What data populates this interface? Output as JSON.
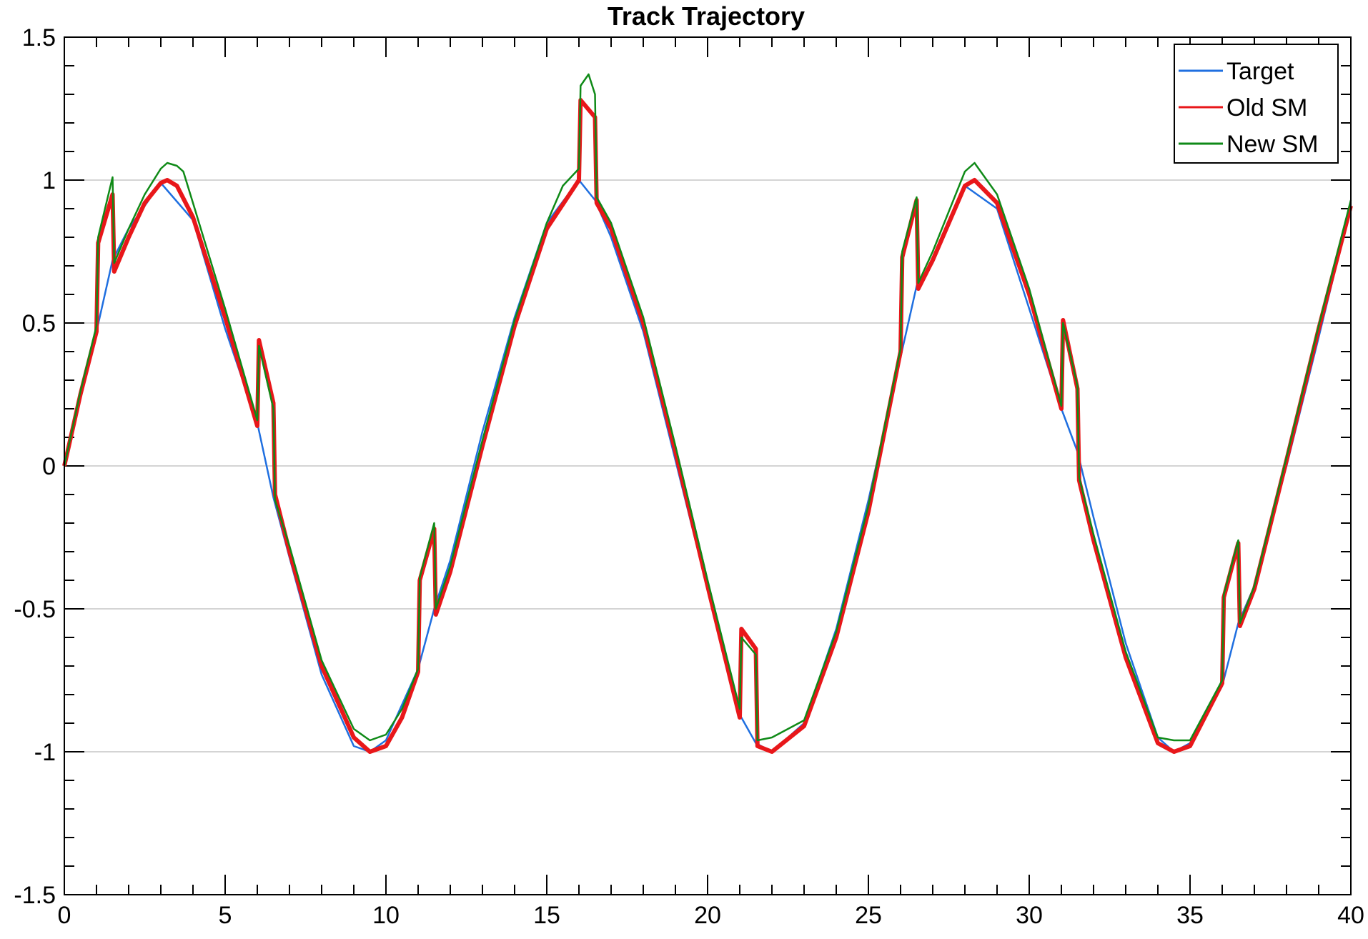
{
  "chart_data": {
    "type": "line",
    "title": "Track Trajectory",
    "xlabel": "",
    "ylabel": "",
    "xlim": [
      0,
      40
    ],
    "ylim": [
      -1.5,
      1.5
    ],
    "x_ticks": [
      0,
      5,
      10,
      15,
      20,
      25,
      30,
      35,
      40
    ],
    "x_tick_labels": [
      "0",
      "5",
      "10",
      "15",
      "20",
      "25",
      "30",
      "35",
      "40"
    ],
    "y_ticks": [
      -1.5,
      -1,
      -0.5,
      0,
      0.5,
      1,
      1.5
    ],
    "y_tick_labels": [
      "-1.5",
      "-1",
      "-0.5",
      "0",
      "0.5",
      "1",
      "1.5"
    ],
    "grid": "horizontal",
    "legend_position": "top-right",
    "series": [
      {
        "name": "Target",
        "color": "#1f6fe0",
        "x": [
          0,
          1,
          1.5,
          2,
          3,
          4,
          5,
          6,
          6.5,
          7,
          8,
          9,
          9.5,
          10,
          11,
          11.5,
          12,
          13,
          14,
          15,
          16,
          16.5,
          17,
          18,
          19,
          20,
          21,
          21.5,
          22,
          23,
          24,
          25,
          26,
          26.5,
          27,
          28,
          29,
          30,
          31,
          31.5,
          32,
          33,
          34,
          34.5,
          35,
          36,
          36.5,
          37,
          38,
          39,
          40
        ],
        "y": [
          0,
          0.47,
          0.72,
          0.83,
          0.99,
          0.86,
          0.48,
          0.15,
          -0.11,
          -0.32,
          -0.73,
          -0.98,
          -1.0,
          -0.96,
          -0.71,
          -0.5,
          -0.33,
          0.12,
          0.52,
          0.85,
          1.0,
          0.93,
          0.8,
          0.47,
          0.02,
          -0.43,
          -0.87,
          -0.97,
          -1.0,
          -0.9,
          -0.57,
          -0.12,
          0.38,
          0.63,
          0.71,
          0.98,
          0.9,
          0.55,
          0.2,
          0.05,
          -0.18,
          -0.62,
          -0.95,
          -1.0,
          -0.97,
          -0.77,
          -0.55,
          -0.42,
          0.0,
          0.45,
          0.91
        ]
      },
      {
        "name": "Old SM",
        "color": "#e8171a",
        "x": [
          0,
          0.5,
          1,
          1.05,
          1.5,
          1.55,
          2,
          2.5,
          3,
          3.2,
          3.5,
          4,
          5,
          6,
          6.05,
          6.5,
          6.55,
          7,
          8,
          9,
          9.5,
          10,
          10.5,
          11,
          11.05,
          11.5,
          11.55,
          12,
          13,
          14,
          15,
          16,
          16.05,
          16.5,
          16.55,
          17,
          18,
          19,
          20,
          21,
          21.05,
          21.5,
          21.55,
          22,
          23,
          24,
          25,
          26,
          26.05,
          26.5,
          26.55,
          27,
          28,
          28.3,
          29,
          30,
          31,
          31.05,
          31.5,
          31.55,
          32,
          33,
          34,
          34.5,
          35,
          36,
          36.05,
          36.5,
          36.55,
          37,
          38,
          39,
          40
        ],
        "y": [
          0,
          0.25,
          0.47,
          0.78,
          0.95,
          0.68,
          0.8,
          0.92,
          0.99,
          1.0,
          0.98,
          0.87,
          0.52,
          0.14,
          0.44,
          0.22,
          -0.1,
          -0.3,
          -0.7,
          -0.95,
          -1.0,
          -0.98,
          -0.88,
          -0.72,
          -0.4,
          -0.22,
          -0.52,
          -0.37,
          0.07,
          0.49,
          0.83,
          1.0,
          1.28,
          1.22,
          0.92,
          0.83,
          0.5,
          0.05,
          -0.42,
          -0.88,
          -0.57,
          -0.64,
          -0.98,
          -1.0,
          -0.91,
          -0.6,
          -0.16,
          0.4,
          0.73,
          0.93,
          0.62,
          0.72,
          0.98,
          1.0,
          0.92,
          0.6,
          0.2,
          0.51,
          0.27,
          -0.05,
          -0.26,
          -0.67,
          -0.97,
          -1.0,
          -0.98,
          -0.76,
          -0.46,
          -0.27,
          -0.56,
          -0.43,
          0.02,
          0.48,
          0.91
        ]
      },
      {
        "name": "New SM",
        "color": "#0f8a17",
        "x": [
          0,
          0.5,
          1,
          1.05,
          1.5,
          1.55,
          2,
          2.5,
          3,
          3.2,
          3.5,
          3.7,
          4,
          5,
          6,
          6.05,
          6.5,
          6.55,
          7,
          8,
          9,
          9.5,
          10,
          10.5,
          11,
          11.05,
          11.5,
          11.55,
          12,
          13,
          14,
          15,
          15.5,
          16,
          16.05,
          16.3,
          16.5,
          16.55,
          17,
          18,
          19,
          20,
          21,
          21.05,
          21.5,
          21.55,
          22,
          23,
          24,
          25,
          26,
          26.05,
          26.5,
          26.55,
          27,
          28,
          28.3,
          29,
          30,
          31,
          31.05,
          31.5,
          31.55,
          32,
          33,
          34,
          34.5,
          35,
          36,
          36.05,
          36.5,
          36.55,
          37,
          38,
          39,
          40
        ],
        "y": [
          0,
          0.26,
          0.49,
          0.8,
          1.01,
          0.71,
          0.83,
          0.95,
          1.04,
          1.06,
          1.05,
          1.03,
          0.92,
          0.55,
          0.16,
          0.42,
          0.2,
          -0.12,
          -0.28,
          -0.68,
          -0.92,
          -0.96,
          -0.94,
          -0.85,
          -0.71,
          -0.39,
          -0.2,
          -0.5,
          -0.35,
          0.09,
          0.51,
          0.85,
          0.98,
          1.04,
          1.33,
          1.37,
          1.3,
          0.94,
          0.85,
          0.52,
          0.07,
          -0.4,
          -0.85,
          -0.6,
          -0.66,
          -0.96,
          -0.95,
          -0.89,
          -0.58,
          -0.14,
          0.41,
          0.75,
          0.94,
          0.64,
          0.75,
          1.03,
          1.06,
          0.95,
          0.62,
          0.21,
          0.5,
          0.28,
          -0.04,
          -0.24,
          -0.65,
          -0.95,
          -0.96,
          -0.96,
          -0.75,
          -0.45,
          -0.26,
          -0.55,
          -0.42,
          0.03,
          0.49,
          0.93
        ]
      }
    ]
  }
}
